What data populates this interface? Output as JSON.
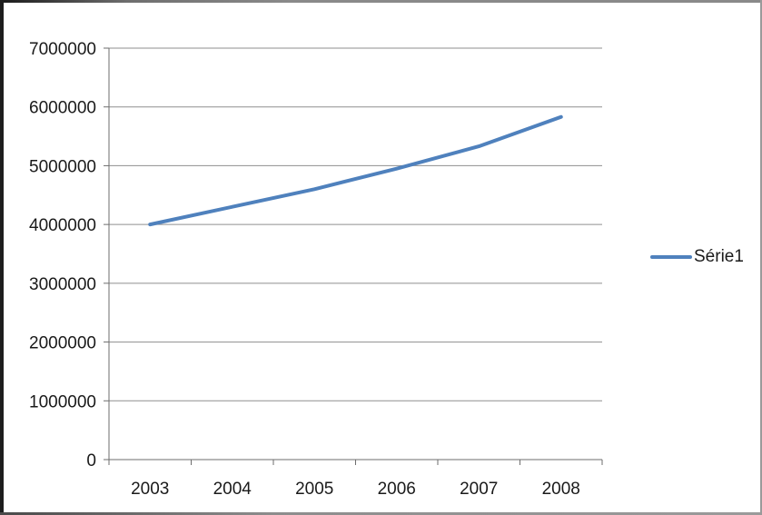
{
  "chart_data": {
    "type": "line",
    "categories": [
      "2003",
      "2004",
      "2005",
      "2006",
      "2007",
      "2008"
    ],
    "series": [
      {
        "name": "Série1",
        "color": "#4f81bd",
        "values": [
          4000000,
          4300000,
          4600000,
          4950000,
          5330000,
          5830000
        ]
      }
    ],
    "ylim": [
      0,
      7000000
    ],
    "ytick_step": 1000000,
    "ytick_labels": [
      "0",
      "1000000",
      "2000000",
      "3000000",
      "4000000",
      "5000000",
      "6000000",
      "7000000"
    ],
    "xlabel": "",
    "ylabel": "",
    "grid": "horizontal",
    "legend_position": "right-middle",
    "colors": {
      "gridline": "#8f8f8f",
      "axis": "#6e6e6e",
      "tick_label": "#1a1a1a"
    }
  }
}
